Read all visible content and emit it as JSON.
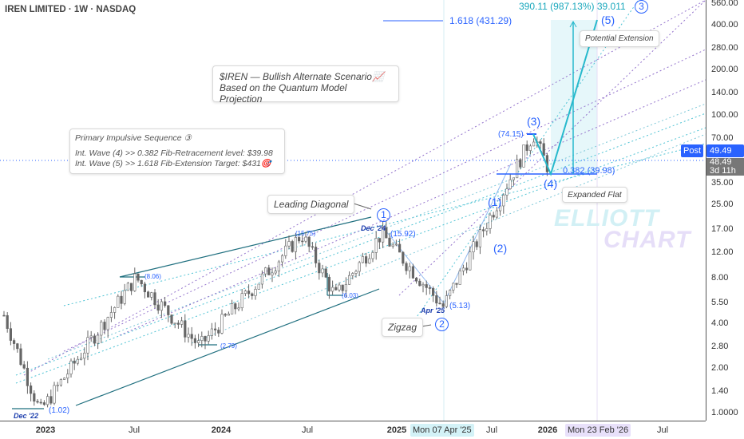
{
  "header": {
    "title": "IREN LIMITED · 1W · NASDAQ"
  },
  "notes": {
    "scenario_line1": "$IREN — Bullish Alternate Scenario📈",
    "scenario_line2": "Based on the Quantum Model Projection",
    "primary_title": "Primary Impulsive Sequence ③",
    "primary_line1": "Int. Wave (4) >> 0.382 Fib-Retracement level: $39.98",
    "primary_line2": "Int. Wave (5) >> 1.618 Fib-Extension Target: $431🎯",
    "leading_diagonal": "Leading Diagonal",
    "zigzag": "Zigzag",
    "expanded_flat": "Expanded Flat",
    "potential_extension": "Potential Extension"
  },
  "labels": {
    "fib_target": "1.618 (431.29)",
    "projection": "390.11 (987.13%) 39.011",
    "fib_retrace": "0.382 (39.98)",
    "p_74": "(74.15)",
    "p_1592": "(15.92)",
    "p_1575": "(15.75)",
    "p_806": "(8.06)",
    "p_603": "(6.03)",
    "p_279": "(2.79)",
    "p_102": "(1.02)",
    "p_513": "(5.13)",
    "d_dec22": "Dec '22",
    "d_dec24": "Dec '24",
    "d_apr25": "Apr '25",
    "w1": "(1)",
    "w2": "(2)",
    "w3": "(3)",
    "w4": "(4)",
    "w5": "(5)",
    "c1": "1",
    "c2": "2",
    "c3": "3"
  },
  "watermark": {
    "line1": "ELLIOTT",
    "line2": "CHART"
  },
  "price_axis": {
    "ticks": [
      "560.00",
      "400.00",
      "280.00",
      "200.00",
      "140.00",
      "100.00",
      "70.00",
      "35.00",
      "25.00",
      "17.00",
      "12.00",
      "8.00",
      "5.50",
      "4.00",
      "2.80",
      "2.00",
      "1.40",
      "1.0000"
    ],
    "post_label": "Post",
    "post_price": "49.49",
    "last_price": "48.49",
    "countdown": "3d 11h"
  },
  "time_axis": {
    "ticks": [
      "2023",
      "Jul",
      "2024",
      "Jul",
      "2025",
      "Jul",
      "2026",
      "Jul"
    ],
    "highlight_start": "Mon 07 Apr '25",
    "highlight_end": "Mon 23 Feb '26"
  },
  "colors": {
    "wave": "#26b9cc",
    "blue": "#2962ff",
    "up": "#555",
    "projection": "#e6f7fa"
  },
  "chart_data": {
    "type": "candlestick",
    "title": "IREN LIMITED · 1W · NASDAQ",
    "scale": "log",
    "ylim": [
      0.95,
      600
    ],
    "pivots": [
      {
        "date": "2022-10",
        "price": 4.5
      },
      {
        "date": "2022-12",
        "price": 1.02
      },
      {
        "date": "2023-07",
        "price": 8.06
      },
      {
        "date": "2023-11",
        "price": 2.79
      },
      {
        "date": "2024-07",
        "price": 15.75
      },
      {
        "date": "2024-09",
        "price": 6.03
      },
      {
        "date": "2024-12",
        "price": 15.92
      },
      {
        "date": "2025-04",
        "price": 5.13
      },
      {
        "date": "2025-10",
        "price": 74.15
      },
      {
        "date": "2025-11",
        "price": 39.98
      },
      {
        "date": "2025-11",
        "price": 48.49
      }
    ],
    "projection": {
      "wave5_target": 431.29,
      "change": 390.11,
      "change_pct": 987.13
    }
  }
}
